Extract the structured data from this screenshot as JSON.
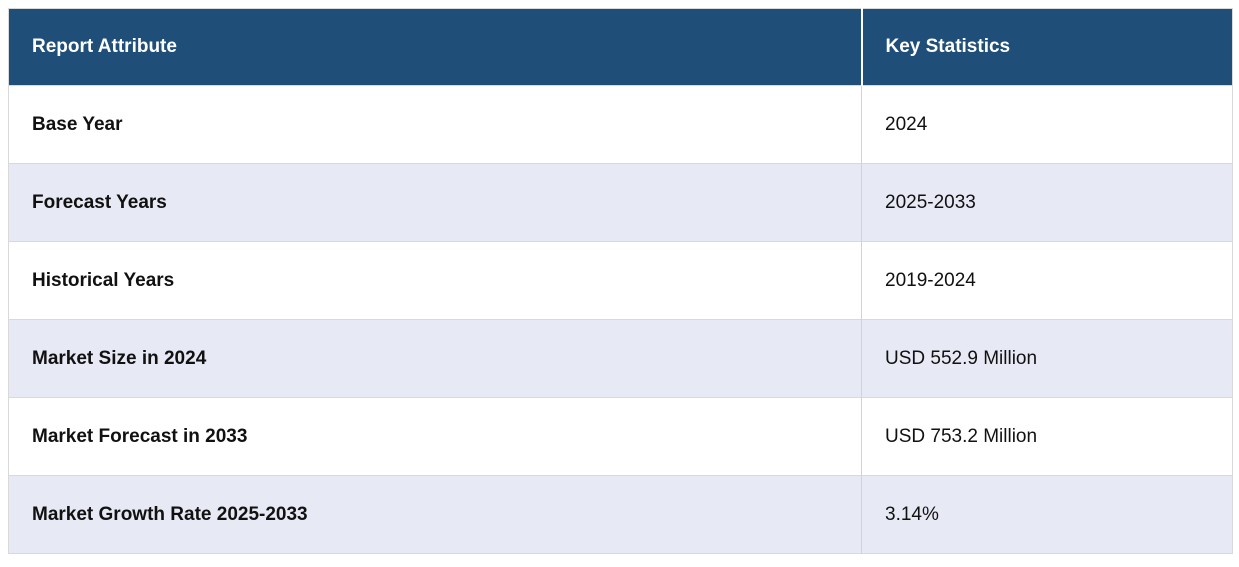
{
  "table": {
    "columns": [
      {
        "label": "Report Attribute"
      },
      {
        "label": "Key Statistics"
      }
    ],
    "rows": [
      {
        "attribute": "Base Year",
        "value": "2024"
      },
      {
        "attribute": "Forecast Years",
        "value": "2025-2033"
      },
      {
        "attribute": "Historical Years",
        "value": "2019-2024"
      },
      {
        "attribute": "Market Size in 2024",
        "value": "USD 552.9 Million"
      },
      {
        "attribute": "Market Forecast in 2033",
        "value": "USD 753.2 Million"
      },
      {
        "attribute": "Market Growth Rate 2025-2033",
        "value": "3.14%"
      }
    ]
  },
  "chart_data": {
    "type": "table",
    "title": "Report Attribute / Key Statistics",
    "columns": [
      "Report Attribute",
      "Key Statistics"
    ],
    "rows": [
      [
        "Base Year",
        "2024"
      ],
      [
        "Forecast Years",
        "2025-2033"
      ],
      [
        "Historical Years",
        "2019-2024"
      ],
      [
        "Market Size in 2024",
        "USD 552.9 Million"
      ],
      [
        "Market Forecast in 2033",
        "USD 753.2 Million"
      ],
      [
        "Market Growth Rate 2025-2033",
        "3.14%"
      ]
    ],
    "market_size_2024_usd_million": 552.9,
    "market_forecast_2033_usd_million": 753.2,
    "cagr_2025_2033_percent": 3.14
  },
  "colors": {
    "header_bg": "#1F4E79",
    "header_text": "#FFFFFF",
    "row_bg": "#FFFFFF",
    "row_alt_bg": "#E7E9F5",
    "border": "#D9D9D9",
    "col_divider": "#D3D3D3",
    "body_text": "#111111"
  }
}
